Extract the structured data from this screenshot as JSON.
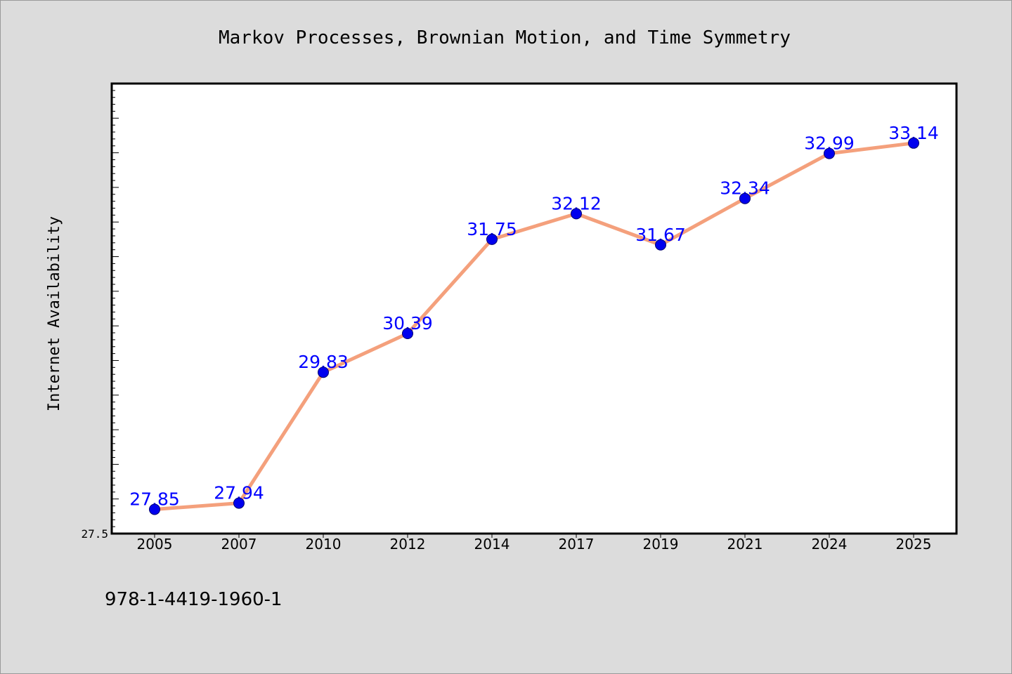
{
  "chart_data": {
    "type": "line",
    "title": "Markov Processes, Brownian Motion, and Time Symmetry",
    "ylabel": "Internet Availability",
    "xlabel": "",
    "categories": [
      "2005",
      "2007",
      "2010",
      "2012",
      "2014",
      "2017",
      "2019",
      "2021",
      "2024",
      "2025"
    ],
    "series": [
      {
        "values": [
          27.85,
          27.94,
          29.83,
          30.39,
          31.75,
          32.12,
          31.67,
          32.34,
          32.99,
          33.14
        ]
      }
    ],
    "data_labels": [
      "27.85",
      "27.94",
      "29.83",
      "30.39",
      "31.75",
      "32.12",
      "31.67",
      "32.34",
      "32.99",
      "33.14"
    ],
    "ylim": [
      27.5,
      34.0
    ],
    "yticks_labeled": [
      "27.5"
    ],
    "grid": false,
    "legend": "none",
    "colors": {
      "line": "#f4a07c",
      "marker": "#0000ee",
      "label": "#0000ff",
      "background": "#dcdcdc",
      "plot": "#ffffff"
    }
  },
  "footer": {
    "code": "978-1-4419-1960-1"
  }
}
